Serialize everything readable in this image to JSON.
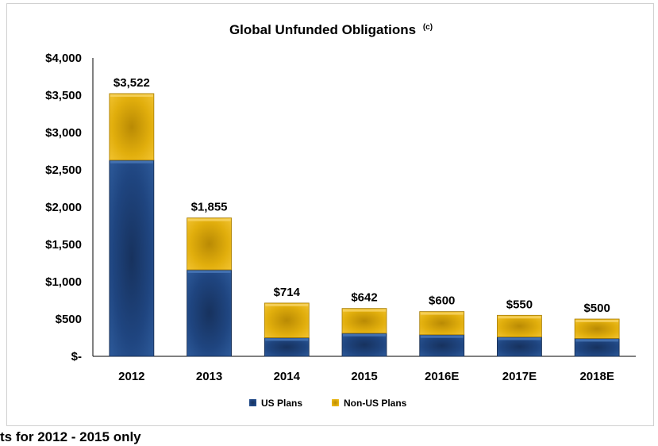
{
  "chart_data": {
    "type": "bar",
    "stacked": true,
    "title": "Global Unfunded Obligations",
    "title_superscript": "(c)",
    "categories": [
      "2012",
      "2013",
      "2014",
      "2015",
      "2016E",
      "2017E",
      "2018E"
    ],
    "series": [
      {
        "name": "US Plans",
        "values": [
          2630,
          1160,
          250,
          310,
          290,
          260,
          240
        ],
        "color": "#1f3f73"
      },
      {
        "name": "Non-US Plans",
        "values": [
          892,
          695,
          464,
          332,
          310,
          290,
          260
        ],
        "color": "#d9a50a"
      }
    ],
    "totals": [
      3522,
      1855,
      714,
      642,
      600,
      550,
      500
    ],
    "total_labels": [
      "$3,522",
      "$1,855",
      "$714",
      "$642",
      "$600",
      "$550",
      "$500"
    ],
    "ylim": [
      0,
      4000
    ],
    "yticks": [
      0,
      500,
      1000,
      1500,
      2000,
      2500,
      3000,
      3500,
      4000
    ],
    "ytick_labels": [
      "$-",
      "$500",
      "$1,000",
      "$1,500",
      "$2,000",
      "$2,500",
      "$3,000",
      "$3,500",
      "$4,000"
    ],
    "xlabel": "",
    "ylabel": "",
    "grid": false,
    "legend_position": "bottom"
  },
  "footnote": "ts for 2012 - 2015 only"
}
